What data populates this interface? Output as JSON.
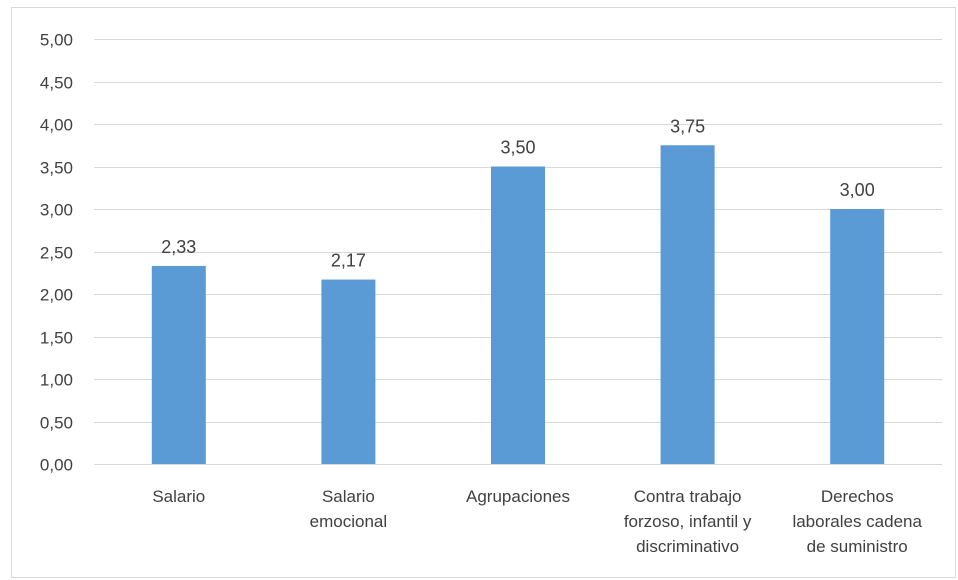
{
  "chart_data": {
    "type": "bar",
    "categories": [
      [
        "Salario"
      ],
      [
        "Salario",
        "emocional"
      ],
      [
        "Agrupaciones"
      ],
      [
        "Contra trabajo",
        "forzoso, infantil y",
        "discriminativo"
      ],
      [
        "Derechos",
        "laborales cadena",
        "de suministro"
      ]
    ],
    "values": [
      2.33,
      2.17,
      3.5,
      3.75,
      3.0
    ],
    "data_labels": [
      "2,33",
      "2,17",
      "3,50",
      "3,75",
      "3,00"
    ],
    "ylim": [
      0,
      5
    ],
    "yticks": [
      0,
      0.5,
      1,
      1.5,
      2,
      2.5,
      3,
      3.5,
      4,
      4.5,
      5
    ],
    "ytick_labels": [
      "0,00",
      "0,50",
      "1,00",
      "1,50",
      "2,00",
      "2,50",
      "3,00",
      "3,50",
      "4,00",
      "4,50",
      "5,00"
    ],
    "grid": true,
    "legend": "none",
    "bar_color": "#5b9bd5",
    "grid_color": "#d9d9d9",
    "text_color": "#404040"
  }
}
